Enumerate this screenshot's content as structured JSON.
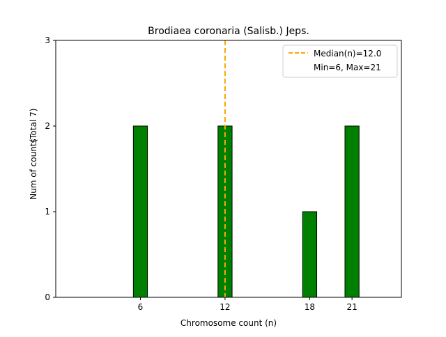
{
  "chart_data": {
    "type": "bar",
    "title": "Brodiaea coronaria (Salisb.) Jeps.",
    "xlabel": "Chromosome count (n)",
    "ylabel": "Num of counts",
    "ylabel_secondary": "(Total 7)",
    "x": [
      6,
      12,
      18,
      21
    ],
    "values": [
      2,
      2,
      1,
      2
    ],
    "xticks": [
      6,
      12,
      18,
      21
    ],
    "yticks": [
      0,
      1,
      2,
      3
    ],
    "xlim": [
      0,
      24.5
    ],
    "ylim": [
      0,
      3
    ],
    "bar_width": 1,
    "bar_color": "#008000",
    "bar_edge_color": "#000000",
    "median": {
      "value": 12.0,
      "color": "#ffa500",
      "label": "Median(n)=12.0"
    },
    "legend": {
      "position": "top-right",
      "entries": [
        "Median(n)=12.0",
        "Min=6, Max=21"
      ]
    },
    "grid": false
  }
}
